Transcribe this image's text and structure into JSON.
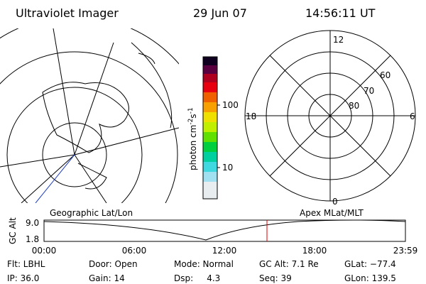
{
  "header": {
    "title": "Ultraviolet Imager",
    "date": "29 Jun 07",
    "time": "14:56:11 UT"
  },
  "colorbar": {
    "unit": [
      "photon cm",
      "-2",
      "s",
      "-1"
    ],
    "ticks": [
      "100",
      "10"
    ]
  },
  "polar": {
    "mlt": [
      "12",
      "6",
      "0",
      "18"
    ],
    "mlat": [
      "60",
      "70",
      "80"
    ]
  },
  "strip": {
    "left_label": "Geographic Lat/Lon",
    "right_label": "Apex MLat/MLT",
    "y_label": "GC Alt",
    "y_ticks": [
      "9.0",
      "1.8"
    ],
    "x_ticks": [
      "00:00",
      "06:00",
      "12:00",
      "18:00",
      "23:59"
    ]
  },
  "info": [
    [
      "Flt: LBHL",
      "Door: Open",
      "Mode: Normal",
      "GC Alt: 7.1 Re",
      "GLat: −77.4"
    ],
    [
      "IP: 36.0",
      "Gain: 14",
      "Dsp:     4.3",
      "Seq: 39",
      "GLon: 139.5"
    ]
  ]
}
